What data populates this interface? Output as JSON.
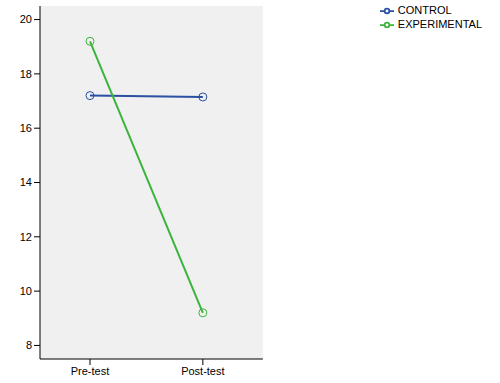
{
  "chart_data": {
    "type": "line",
    "categories": [
      "Pre-test",
      "Post-test"
    ],
    "series": [
      {
        "name": "CONTROL",
        "color": "#2a4fa3",
        "values": [
          17.2,
          17.15
        ]
      },
      {
        "name": "EXPERIMENTAL",
        "color": "#3cb43c",
        "values": [
          19.2,
          9.2
        ]
      }
    ],
    "ylim": [
      7.5,
      20.5
    ],
    "yticks": [
      8,
      10,
      12,
      14,
      16,
      18,
      20
    ],
    "grid": false,
    "legend": "upper right",
    "marker": "circle"
  }
}
